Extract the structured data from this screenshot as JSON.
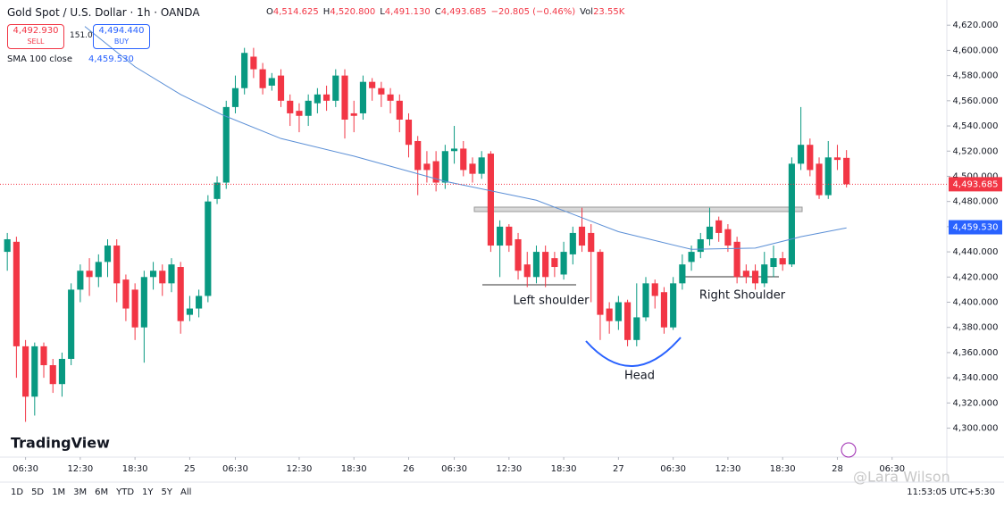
{
  "header": {
    "symbol": "Gold Spot / U.S. Dollar · 1h · OANDA",
    "ohlc": [
      {
        "key": "O",
        "value": "4,514.625"
      },
      {
        "key": "H",
        "value": "4,520.800"
      },
      {
        "key": "L",
        "value": "4,491.130"
      },
      {
        "key": "C",
        "value": "4,493.685"
      }
    ],
    "change": "−20.805 (−0.46%)",
    "vol_key": "Vol",
    "vol": "23.55K",
    "sell_price": "4,492.930",
    "sell": "SELL",
    "spread": "151.0",
    "buy_price": "4,494.440",
    "buy": "BUY",
    "indicator": "SMA 100 close",
    "indicator_value": "4,459.530"
  },
  "annotations": {
    "left": "Left shoulder",
    "head": "Head",
    "right": "Right Shoulder"
  },
  "toolbar": {
    "ranges": [
      "1D",
      "5D",
      "1M",
      "3M",
      "6M",
      "YTD",
      "1Y",
      "5Y",
      "All"
    ],
    "clock": "11:53:05 UTC+5:30",
    "logo": "TradingView",
    "watermark": "@Lara Wilson"
  },
  "chart_data": {
    "type": "candlestick",
    "up_color": "#089981",
    "down_color": "#f23645",
    "xlim": [
      -0.8,
      103
    ],
    "ylim": [
      4277,
      4640
    ],
    "grid": false,
    "xticks": [
      {
        "value": 2,
        "label": "06:30"
      },
      {
        "value": 8,
        "label": "12:30"
      },
      {
        "value": 14,
        "label": "18:30"
      },
      {
        "value": 20,
        "label": "25"
      },
      {
        "value": 25,
        "label": "06:30"
      },
      {
        "value": 32,
        "label": "12:30"
      },
      {
        "value": 38,
        "label": "18:30"
      },
      {
        "value": 44,
        "label": "26"
      },
      {
        "value": 49,
        "label": "06:30"
      },
      {
        "value": 55,
        "label": "12:30"
      },
      {
        "value": 61,
        "label": "18:30"
      },
      {
        "value": 67,
        "label": "27"
      },
      {
        "value": 73,
        "label": "06:30"
      },
      {
        "value": 79,
        "label": "12:30"
      },
      {
        "value": 85,
        "label": "18:30"
      },
      {
        "value": 91,
        "label": "28"
      },
      {
        "value": 97,
        "label": "06:30"
      }
    ],
    "yticks": [
      {
        "value": 4300,
        "label": "4,300.000"
      },
      {
        "value": 4320,
        "label": "4,320.000"
      },
      {
        "value": 4340,
        "label": "4,340.000"
      },
      {
        "value": 4360,
        "label": "4,360.000"
      },
      {
        "value": 4380,
        "label": "4,380.000"
      },
      {
        "value": 4400,
        "label": "4,400.000"
      },
      {
        "value": 4420,
        "label": "4,420.000"
      },
      {
        "value": 4440,
        "label": "4,440.000"
      },
      {
        "value": 4460,
        "label": "4,460.000"
      },
      {
        "value": 4480,
        "label": "4,480.000"
      },
      {
        "value": 4500,
        "label": "4,500.000"
      },
      {
        "value": 4520,
        "label": "4,520.000"
      },
      {
        "value": 4540,
        "label": "4,540.000"
      },
      {
        "value": 4560,
        "label": "4,560.000"
      },
      {
        "value": 4580,
        "label": "4,580.000"
      },
      {
        "value": 4600,
        "label": "4,600.000"
      },
      {
        "value": 4620,
        "label": "4,620.000"
      }
    ],
    "open": [
      4440,
      4448,
      4365,
      4325,
      4365,
      4350,
      4335,
      4355,
      4410,
      4425,
      4420,
      4432,
      4445,
      4418,
      4410,
      4380,
      4420,
      4425,
      4415,
      4428,
      4390,
      4395,
      4405,
      4482,
      4495,
      4555,
      4570,
      4595,
      4585,
      4572,
      4580,
      4560,
      4552,
      4548,
      4558,
      4565,
      4560,
      4580,
      4550,
      4550,
      4575,
      4570,
      4565,
      4560,
      4545,
      4528,
      4510,
      4512,
      4495,
      4520,
      4522,
      4510,
      4502,
      4518,
      4445,
      4460,
      4450,
      4430,
      4420,
      4440,
      4435,
      4422,
      4438,
      4460,
      4455,
      4440,
      4395,
      4385,
      4400,
      4370,
      4388,
      4415,
      4408,
      4380,
      4415,
      4432,
      4440,
      4450,
      4465,
      4458,
      4448,
      4425,
      4425,
      4415,
      4428,
      4435,
      4430,
      4510,
      4525,
      4510,
      4485,
      4515,
      4514.625
    ],
    "close": [
      4450,
      4365,
      4325,
      4365,
      4350,
      4335,
      4355,
      4410,
      4425,
      4420,
      4432,
      4445,
      4415,
      4395,
      4380,
      4420,
      4425,
      4415,
      4430,
      4385,
      4395,
      4405,
      4480,
      4495,
      4555,
      4570,
      4598,
      4585,
      4570,
      4578,
      4560,
      4550,
      4548,
      4560,
      4565,
      4560,
      4580,
      4545,
      4548,
      4575,
      4570,
      4565,
      4560,
      4545,
      4525,
      4505,
      4505,
      4495,
      4520,
      4522,
      4505,
      4502,
      4515,
      4445,
      4460,
      4445,
      4425,
      4420,
      4440,
      4420,
      4428,
      4440,
      4455,
      4445,
      4440,
      4390,
      4385,
      4400,
      4370,
      4388,
      4415,
      4405,
      4380,
      4415,
      4430,
      4440,
      4450,
      4460,
      4455,
      4445,
      4420,
      4420,
      4415,
      4430,
      4435,
      4430,
      4510,
      4525,
      4505,
      4485,
      4515,
      4513,
      4493.685
    ],
    "high": [
      4455,
      4452,
      4370,
      4368,
      4368,
      4355,
      4360,
      4415,
      4430,
      4435,
      4438,
      4450,
      4450,
      4422,
      4415,
      4425,
      4432,
      4430,
      4435,
      4432,
      4405,
      4410,
      4485,
      4500,
      4560,
      4580,
      4602,
      4602,
      4590,
      4582,
      4585,
      4565,
      4558,
      4565,
      4570,
      4572,
      4585,
      4585,
      4560,
      4580,
      4578,
      4575,
      4570,
      4565,
      4550,
      4532,
      4520,
      4520,
      4525,
      4540,
      4528,
      4515,
      4520,
      4520,
      4465,
      4462,
      4455,
      4440,
      4445,
      4445,
      4440,
      4448,
      4460,
      4475,
      4462,
      4442,
      4400,
      4405,
      4402,
      4415,
      4420,
      4418,
      4412,
      4420,
      4438,
      4445,
      4455,
      4475,
      4468,
      4462,
      4452,
      4430,
      4430,
      4440,
      4445,
      4440,
      4515,
      4555,
      4530,
      4515,
      4528,
      4525,
      4520.8
    ],
    "low": [
      4425,
      4340,
      4305,
      4310,
      4340,
      4328,
      4325,
      4350,
      4400,
      4405,
      4412,
      4420,
      4400,
      4385,
      4370,
      4352,
      4410,
      4405,
      4408,
      4375,
      4385,
      4388,
      4400,
      4478,
      4490,
      4550,
      4565,
      4578,
      4565,
      4568,
      4555,
      4540,
      4535,
      4540,
      4550,
      4552,
      4555,
      4530,
      4535,
      4545,
      4560,
      4555,
      4550,
      4535,
      4515,
      4485,
      4495,
      4488,
      4490,
      4510,
      4500,
      4495,
      4498,
      4440,
      4420,
      4440,
      4418,
      4412,
      4415,
      4412,
      4420,
      4418,
      4430,
      4440,
      4400,
      4370,
      4375,
      4378,
      4365,
      4365,
      4385,
      4395,
      4375,
      4378,
      4410,
      4425,
      4435,
      4445,
      4448,
      4440,
      4415,
      4415,
      4410,
      4412,
      4420,
      4425,
      4428,
      4505,
      4500,
      4482,
      4482,
      4505,
      4491.13
    ],
    "last_price": 4493.685,
    "last_price_label": "4,493.685",
    "sma": {
      "name": "SMA 100 close",
      "color": "#5b8fd6",
      "value": 4459.53,
      "value_label": "4,459.530",
      "x": [
        8.5,
        14,
        19,
        23.5,
        30,
        38,
        48,
        58,
        67,
        75,
        82,
        87,
        92
      ],
      "values": [
        4619,
        4587,
        4565,
        4549,
        4530,
        4516,
        4496,
        4481,
        4456,
        4442,
        4443,
        4452,
        4459
      ]
    }
  }
}
